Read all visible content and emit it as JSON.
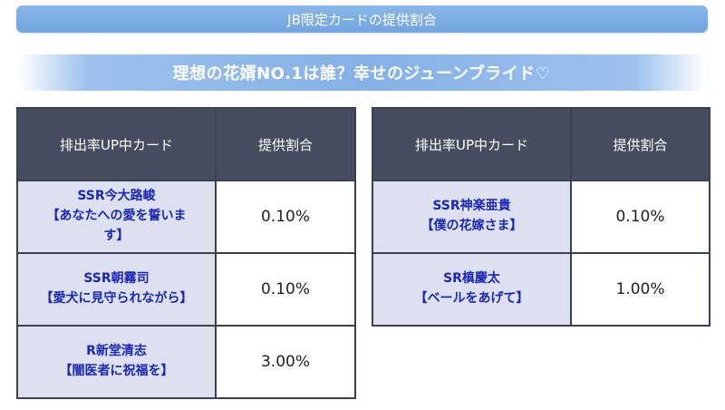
{
  "header": {
    "title": "JB限定カードの提供割合"
  },
  "banner": {
    "title": "理想の花婿NO.1は誰？幸せのジューンブライド♡"
  },
  "tables": [
    {
      "columns": [
        "排出率UP中カード",
        "提供割合"
      ],
      "rows": [
        {
          "name_line1": "SSR今大路峻",
          "name_line2": "【あなたへの愛を誓いま",
          "name_line3": "す】",
          "rate": "0.10%"
        },
        {
          "name_line1": "SSR朝霧司",
          "name_line2": "【愛犬に見守られながら】",
          "name_line3": "",
          "rate": "0.10%"
        },
        {
          "name_line1": "R新堂清志",
          "name_line2": "【闇医者に祝福を】",
          "name_line3": "",
          "rate": "3.00%"
        }
      ]
    },
    {
      "columns": [
        "排出率UP中カード",
        "提供割合"
      ],
      "rows": [
        {
          "name_line1": "SSR神楽亜貴",
          "name_line2": "【僕の花嫁さま】",
          "name_line3": "",
          "rate": "0.10%"
        },
        {
          "name_line1": "SR槙慶太",
          "name_line2": "【ベールをあげて】",
          "name_line3": "",
          "rate": "1.00%"
        }
      ]
    }
  ]
}
